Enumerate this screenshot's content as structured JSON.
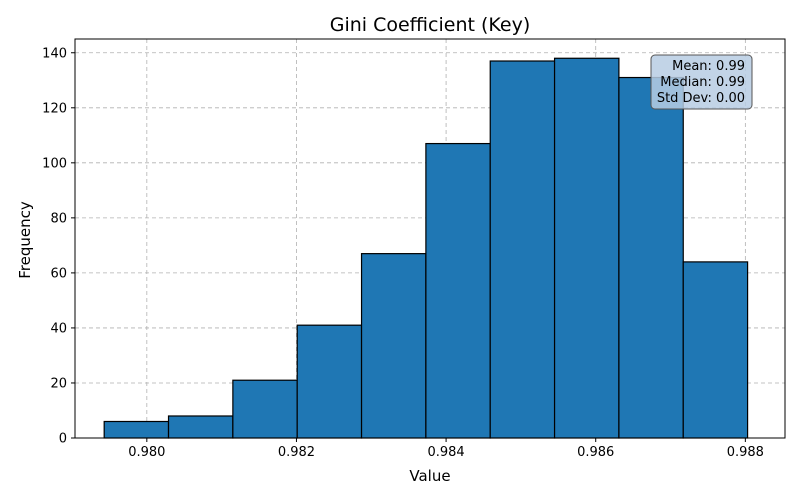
{
  "chart_data": {
    "type": "bar",
    "title": "Gini Coefficient (Key)",
    "xlabel": "Value",
    "ylabel": "Frequency",
    "bin_edges": [
      0.97943,
      0.98029,
      0.98115,
      0.98201,
      0.98287,
      0.98373,
      0.98459,
      0.98545,
      0.98631,
      0.98717,
      0.98803
    ],
    "values": [
      6,
      8,
      21,
      41,
      67,
      107,
      137,
      138,
      131,
      64
    ],
    "xlim": [
      0.97904,
      0.98853
    ],
    "ylim": [
      0,
      145
    ],
    "xticks": [
      "0.980",
      "0.982",
      "0.984",
      "0.986",
      "0.988"
    ],
    "yticks": [
      "0",
      "20",
      "40",
      "60",
      "80",
      "100",
      "120",
      "140"
    ],
    "grid": true,
    "bar_color": "#1f77b4",
    "edge_color": "#000000",
    "annotation": {
      "lines": [
        "Mean: 0.99",
        "Median: 0.99",
        "Std Dev: 0.00"
      ],
      "placement": "top-right",
      "box_color": "#b7cde3"
    }
  }
}
